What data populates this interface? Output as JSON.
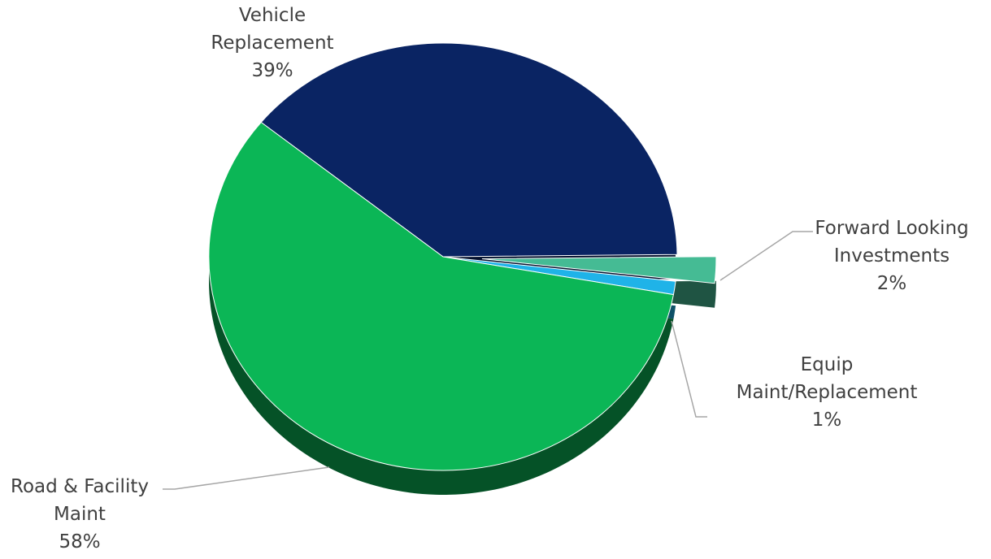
{
  "chart_data": {
    "type": "pie",
    "categories": [
      "Vehicle Replacement",
      "Forward Looking Investments",
      "Equip Maint/Replacement",
      "Road & Facility Maint"
    ],
    "values": [
      39,
      2,
      1,
      58
    ],
    "value_labels": [
      "39%",
      "2%",
      "1%",
      "58%"
    ],
    "colors": [
      "#0a2463",
      "#45bb94",
      "#1fb3e8",
      "#0bb656"
    ]
  }
}
